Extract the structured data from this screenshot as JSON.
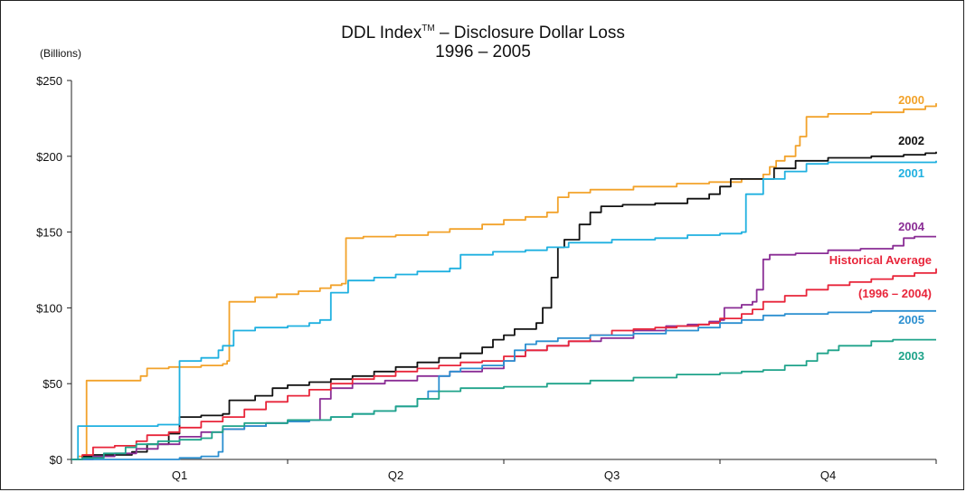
{
  "title_main": "DDL Index",
  "title_tm": "TM",
  "title_rest": " – Disclosure Dollar Loss",
  "subtitle": "1996 – 2005",
  "unit_label": "(Billions)",
  "chart_data": {
    "type": "line",
    "title": "DDL Index™ – Disclosure Dollar Loss 1996 – 2005",
    "ylabel": "(Billions)",
    "ylim": [
      0,
      250
    ],
    "xlim": [
      0,
      4
    ],
    "y_ticks": [
      0,
      50,
      100,
      150,
      200,
      250
    ],
    "y_tick_labels": [
      "$0",
      "$50",
      "$100",
      "$150",
      "$200",
      "$250"
    ],
    "categories": [
      "Q1",
      "Q2",
      "Q3",
      "Q4"
    ],
    "grid": false,
    "legend": "labels at right end of lines",
    "series": [
      {
        "name": "2000",
        "color": "#F2A22A",
        "label_lines": [
          "2000"
        ],
        "points": [
          [
            0,
            0
          ],
          [
            0.03,
            2
          ],
          [
            0.06,
            3
          ],
          [
            0.07,
            52
          ],
          [
            0.2,
            52
          ],
          [
            0.32,
            55
          ],
          [
            0.35,
            60
          ],
          [
            0.45,
            61
          ],
          [
            0.6,
            62
          ],
          [
            0.65,
            62
          ],
          [
            0.7,
            63
          ],
          [
            0.72,
            65
          ],
          [
            0.73,
            104
          ],
          [
            0.85,
            107
          ],
          [
            0.95,
            109
          ],
          [
            1.05,
            111
          ],
          [
            1.15,
            113
          ],
          [
            1.2,
            115
          ],
          [
            1.25,
            116
          ],
          [
            1.27,
            146
          ],
          [
            1.35,
            147
          ],
          [
            1.5,
            148
          ],
          [
            1.65,
            150
          ],
          [
            1.75,
            152
          ],
          [
            1.9,
            155
          ],
          [
            2.0,
            158
          ],
          [
            2.1,
            160
          ],
          [
            2.2,
            163
          ],
          [
            2.25,
            173
          ],
          [
            2.3,
            176
          ],
          [
            2.4,
            178
          ],
          [
            2.6,
            180
          ],
          [
            2.8,
            182
          ],
          [
            2.95,
            183
          ],
          [
            3.1,
            185
          ],
          [
            3.15,
            185
          ],
          [
            3.2,
            188
          ],
          [
            3.23,
            193
          ],
          [
            3.26,
            197
          ],
          [
            3.3,
            200
          ],
          [
            3.35,
            207
          ],
          [
            3.37,
            213
          ],
          [
            3.4,
            226
          ],
          [
            3.5,
            228
          ],
          [
            3.7,
            229
          ],
          [
            3.85,
            231
          ],
          [
            3.95,
            233
          ],
          [
            4.0,
            235
          ]
        ]
      },
      {
        "name": "2002",
        "color": "#111111",
        "label_lines": [
          "2002"
        ],
        "points": [
          [
            0,
            0
          ],
          [
            0.05,
            2
          ],
          [
            0.1,
            3
          ],
          [
            0.2,
            3
          ],
          [
            0.28,
            5
          ],
          [
            0.35,
            10
          ],
          [
            0.45,
            17
          ],
          [
            0.5,
            28
          ],
          [
            0.6,
            29
          ],
          [
            0.7,
            30
          ],
          [
            0.73,
            39
          ],
          [
            0.85,
            42
          ],
          [
            0.93,
            47
          ],
          [
            1.0,
            49
          ],
          [
            1.1,
            51
          ],
          [
            1.2,
            53
          ],
          [
            1.3,
            55
          ],
          [
            1.4,
            58
          ],
          [
            1.5,
            61
          ],
          [
            1.6,
            64
          ],
          [
            1.7,
            67
          ],
          [
            1.8,
            70
          ],
          [
            1.9,
            74
          ],
          [
            1.95,
            79
          ],
          [
            2.0,
            82
          ],
          [
            2.05,
            86
          ],
          [
            2.15,
            90
          ],
          [
            2.18,
            100
          ],
          [
            2.22,
            120
          ],
          [
            2.25,
            140
          ],
          [
            2.28,
            145
          ],
          [
            2.35,
            155
          ],
          [
            2.4,
            163
          ],
          [
            2.45,
            167
          ],
          [
            2.55,
            168
          ],
          [
            2.7,
            169
          ],
          [
            2.85,
            172
          ],
          [
            2.95,
            175
          ],
          [
            3.0,
            180
          ],
          [
            3.05,
            185
          ],
          [
            3.15,
            185
          ],
          [
            3.25,
            192
          ],
          [
            3.35,
            197
          ],
          [
            3.5,
            199
          ],
          [
            3.7,
            200
          ],
          [
            3.85,
            201
          ],
          [
            3.95,
            202
          ],
          [
            4.0,
            203
          ]
        ]
      },
      {
        "name": "2001",
        "color": "#1FB0E0",
        "label_lines": [
          "2001"
        ],
        "points": [
          [
            0,
            0
          ],
          [
            0.03,
            22
          ],
          [
            0.2,
            22
          ],
          [
            0.4,
            23
          ],
          [
            0.5,
            23
          ],
          [
            0.5,
            65
          ],
          [
            0.6,
            67
          ],
          [
            0.68,
            72
          ],
          [
            0.7,
            75
          ],
          [
            0.75,
            85
          ],
          [
            0.85,
            87
          ],
          [
            1.0,
            88
          ],
          [
            1.1,
            90
          ],
          [
            1.15,
            92
          ],
          [
            1.2,
            110
          ],
          [
            1.28,
            118
          ],
          [
            1.4,
            120
          ],
          [
            1.5,
            122
          ],
          [
            1.6,
            124
          ],
          [
            1.75,
            126
          ],
          [
            1.8,
            135
          ],
          [
            1.95,
            137
          ],
          [
            2.1,
            138
          ],
          [
            2.2,
            140
          ],
          [
            2.3,
            143
          ],
          [
            2.5,
            145
          ],
          [
            2.7,
            146
          ],
          [
            2.85,
            148
          ],
          [
            3.0,
            149
          ],
          [
            3.1,
            150
          ],
          [
            3.12,
            175
          ],
          [
            3.2,
            185
          ],
          [
            3.3,
            190
          ],
          [
            3.4,
            195
          ],
          [
            3.5,
            196
          ],
          [
            3.7,
            196
          ],
          [
            3.85,
            196
          ],
          [
            4.0,
            197
          ]
        ]
      },
      {
        "name": "2004",
        "color": "#8A2D95",
        "label_lines": [
          "2004"
        ],
        "points": [
          [
            0,
            0
          ],
          [
            0.1,
            2
          ],
          [
            0.2,
            4
          ],
          [
            0.3,
            7
          ],
          [
            0.4,
            10
          ],
          [
            0.5,
            15
          ],
          [
            0.6,
            18
          ],
          [
            0.7,
            20
          ],
          [
            0.8,
            22
          ],
          [
            0.9,
            24
          ],
          [
            1.0,
            25
          ],
          [
            1.1,
            26
          ],
          [
            1.15,
            40
          ],
          [
            1.2,
            47
          ],
          [
            1.3,
            50
          ],
          [
            1.45,
            52
          ],
          [
            1.6,
            55
          ],
          [
            1.75,
            58
          ],
          [
            1.9,
            60
          ],
          [
            2.0,
            65
          ],
          [
            2.05,
            68
          ],
          [
            2.1,
            72
          ],
          [
            2.2,
            75
          ],
          [
            2.3,
            78
          ],
          [
            2.45,
            80
          ],
          [
            2.6,
            85
          ],
          [
            2.75,
            88
          ],
          [
            2.85,
            89
          ],
          [
            2.95,
            91
          ],
          [
            3.0,
            92
          ],
          [
            3.02,
            100
          ],
          [
            3.1,
            102
          ],
          [
            3.15,
            104
          ],
          [
            3.17,
            112
          ],
          [
            3.2,
            115
          ],
          [
            3.2,
            132
          ],
          [
            3.23,
            135
          ],
          [
            3.35,
            136
          ],
          [
            3.5,
            138
          ],
          [
            3.65,
            139
          ],
          [
            3.8,
            141
          ],
          [
            3.85,
            146
          ],
          [
            3.9,
            147
          ],
          [
            4.0,
            147
          ]
        ]
      },
      {
        "name": "Historical Average (1996 – 2004)",
        "color": "#E8253A",
        "label_lines": [
          "Historical Average",
          "(1996 – 2004)"
        ],
        "points": [
          [
            0,
            0
          ],
          [
            0.05,
            3
          ],
          [
            0.1,
            8
          ],
          [
            0.2,
            9
          ],
          [
            0.3,
            12
          ],
          [
            0.35,
            16
          ],
          [
            0.45,
            18
          ],
          [
            0.5,
            21
          ],
          [
            0.6,
            25
          ],
          [
            0.7,
            28
          ],
          [
            0.8,
            33
          ],
          [
            0.9,
            38
          ],
          [
            1.0,
            42
          ],
          [
            1.1,
            46
          ],
          [
            1.2,
            50
          ],
          [
            1.3,
            53
          ],
          [
            1.4,
            55
          ],
          [
            1.5,
            58
          ],
          [
            1.6,
            60
          ],
          [
            1.7,
            62
          ],
          [
            1.8,
            64
          ],
          [
            1.9,
            65
          ],
          [
            2.0,
            68
          ],
          [
            2.1,
            72
          ],
          [
            2.2,
            75
          ],
          [
            2.3,
            78
          ],
          [
            2.4,
            82
          ],
          [
            2.5,
            85
          ],
          [
            2.6,
            86
          ],
          [
            2.7,
            87
          ],
          [
            2.8,
            88
          ],
          [
            2.9,
            89
          ],
          [
            2.95,
            90
          ],
          [
            3.0,
            93
          ],
          [
            3.1,
            96
          ],
          [
            3.15,
            99
          ],
          [
            3.2,
            104
          ],
          [
            3.3,
            108
          ],
          [
            3.4,
            112
          ],
          [
            3.5,
            115
          ],
          [
            3.6,
            117
          ],
          [
            3.7,
            119
          ],
          [
            3.8,
            121
          ],
          [
            3.9,
            123
          ],
          [
            4.0,
            126
          ]
        ]
      },
      {
        "name": "2005",
        "color": "#2B8FD0",
        "label_lines": [
          "2005"
        ],
        "points": [
          [
            0,
            0
          ],
          [
            0.2,
            0
          ],
          [
            0.5,
            1
          ],
          [
            0.6,
            2
          ],
          [
            0.68,
            5
          ],
          [
            0.7,
            20
          ],
          [
            0.8,
            22
          ],
          [
            0.9,
            24
          ],
          [
            1.0,
            25
          ],
          [
            1.1,
            26
          ],
          [
            1.2,
            28
          ],
          [
            1.3,
            30
          ],
          [
            1.4,
            32
          ],
          [
            1.5,
            35
          ],
          [
            1.6,
            40
          ],
          [
            1.65,
            45
          ],
          [
            1.7,
            55
          ],
          [
            1.75,
            58
          ],
          [
            1.8,
            60
          ],
          [
            1.9,
            62
          ],
          [
            2.0,
            65
          ],
          [
            2.05,
            72
          ],
          [
            2.1,
            76
          ],
          [
            2.15,
            78
          ],
          [
            2.25,
            80
          ],
          [
            2.4,
            82
          ],
          [
            2.6,
            83
          ],
          [
            2.75,
            85
          ],
          [
            2.9,
            87
          ],
          [
            3.0,
            90
          ],
          [
            3.1,
            92
          ],
          [
            3.2,
            95
          ],
          [
            3.3,
            96
          ],
          [
            3.5,
            97
          ],
          [
            3.7,
            98
          ],
          [
            4.0,
            98
          ]
        ]
      },
      {
        "name": "2003",
        "color": "#1FA38A",
        "label_lines": [
          "2003"
        ],
        "points": [
          [
            0,
            0
          ],
          [
            0.05,
            1
          ],
          [
            0.15,
            4
          ],
          [
            0.25,
            8
          ],
          [
            0.3,
            10
          ],
          [
            0.4,
            12
          ],
          [
            0.5,
            13
          ],
          [
            0.6,
            14
          ],
          [
            0.65,
            18
          ],
          [
            0.7,
            22
          ],
          [
            0.8,
            24
          ],
          [
            1.0,
            26
          ],
          [
            1.2,
            28
          ],
          [
            1.3,
            30
          ],
          [
            1.4,
            32
          ],
          [
            1.5,
            35
          ],
          [
            1.6,
            40
          ],
          [
            1.7,
            45
          ],
          [
            1.8,
            47
          ],
          [
            2.0,
            48
          ],
          [
            2.2,
            50
          ],
          [
            2.4,
            52
          ],
          [
            2.6,
            54
          ],
          [
            2.8,
            56
          ],
          [
            3.0,
            57
          ],
          [
            3.1,
            58
          ],
          [
            3.2,
            59
          ],
          [
            3.3,
            62
          ],
          [
            3.4,
            65
          ],
          [
            3.45,
            70
          ],
          [
            3.5,
            72
          ],
          [
            3.55,
            75
          ],
          [
            3.7,
            78
          ],
          [
            3.8,
            79
          ],
          [
            4.0,
            79
          ]
        ]
      }
    ]
  }
}
